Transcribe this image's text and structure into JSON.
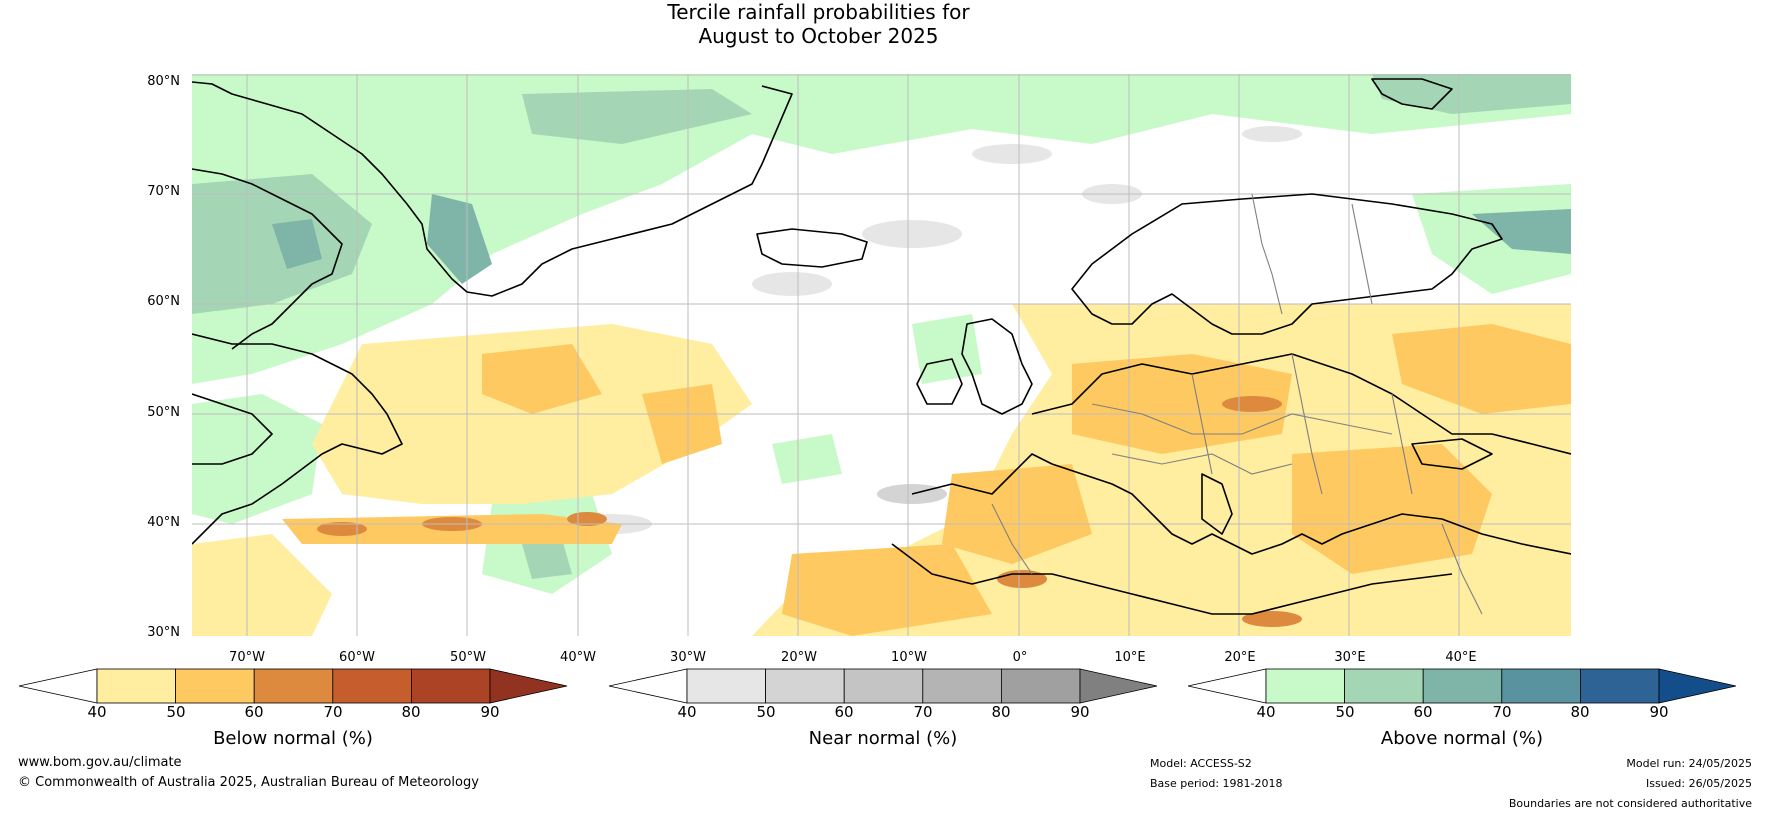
{
  "title": {
    "line1": "Tercile rainfall probabilities for",
    "line2": "August to October 2025"
  },
  "map": {
    "lat_labels": [
      "80°N",
      "70°N",
      "60°N",
      "50°N",
      "40°N",
      "30°N"
    ],
    "lon_labels": [
      "70°W",
      "60°W",
      "50°W",
      "40°W",
      "30°W",
      "20°W",
      "10°W",
      "0°",
      "10°E",
      "20°E",
      "30°E",
      "40°E"
    ],
    "colors": {
      "land_line": "#000000",
      "border_line": "#808080",
      "grid": "#bdbdbd"
    }
  },
  "colorbars": [
    {
      "title": "Below normal (%)",
      "ticks": [
        "40",
        "50",
        "60",
        "70",
        "80",
        "90"
      ],
      "colors": [
        "#ffffff",
        "#ffeda0",
        "#fec960",
        "#dd8a3e",
        "#c65d2c",
        "#ad4325",
        "#923220"
      ]
    },
    {
      "title": "Near normal (%)",
      "ticks": [
        "40",
        "50",
        "60",
        "70",
        "80",
        "90"
      ],
      "colors": [
        "#ffffff",
        "#e6e6e6",
        "#d4d4d4",
        "#c4c4c4",
        "#b4b4b4",
        "#a0a0a0",
        "#808080"
      ]
    },
    {
      "title": "Above normal (%)",
      "ticks": [
        "40",
        "50",
        "60",
        "70",
        "80",
        "90"
      ],
      "colors": [
        "#ffffff",
        "#c8f9c8",
        "#a4d6b6",
        "#7eb5a8",
        "#5a93a0",
        "#2d6495",
        "#144e8a"
      ]
    }
  ],
  "footer": {
    "website": "www.bom.gov.au/climate",
    "copyright": "© Commonwealth of Australia 2025, Australian Bureau of Meteorology",
    "model": "Model: ACCESS-S2",
    "base_period": "Base period: 1981-2018",
    "model_run": "Model run: 24/05/2025",
    "issued": "Issued: 26/05/2025",
    "disclaimer": "Boundaries are not considered authoritative"
  }
}
